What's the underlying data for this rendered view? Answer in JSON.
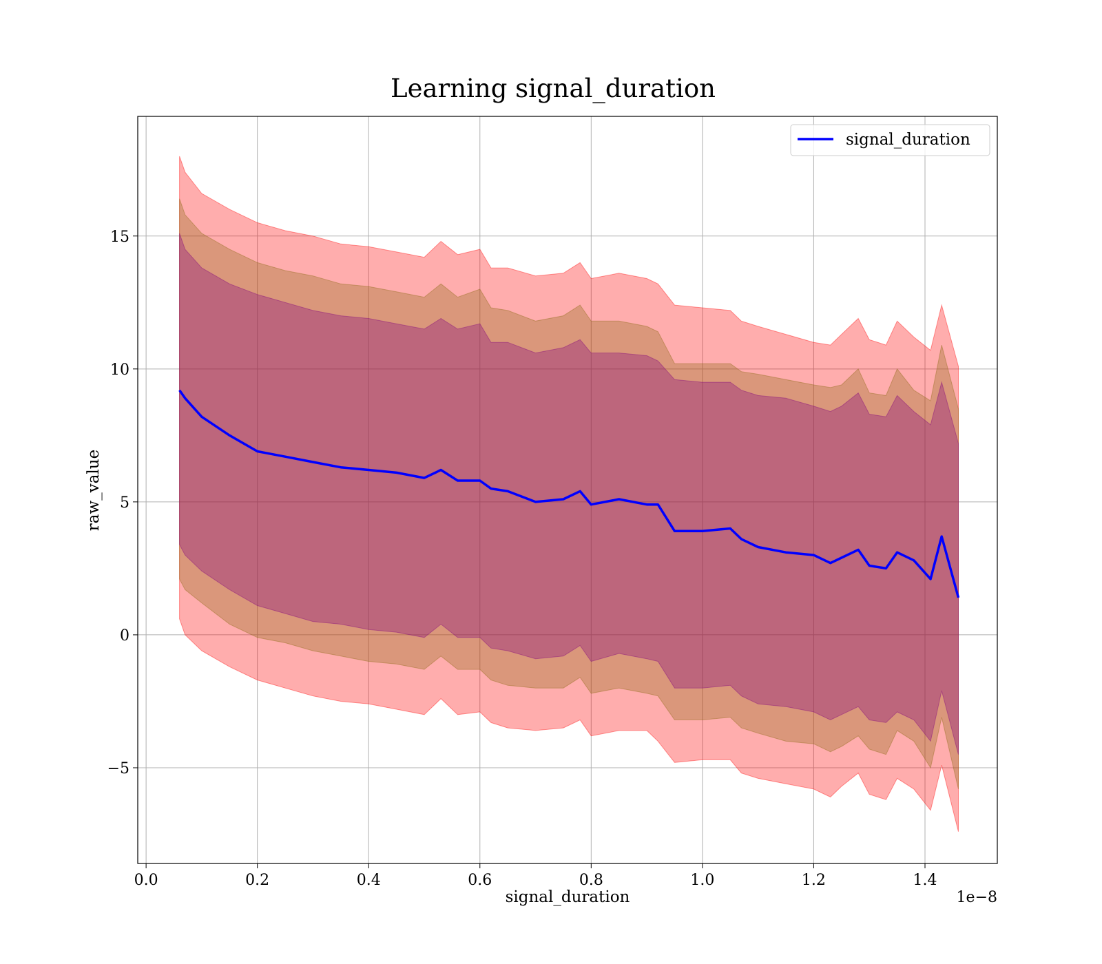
{
  "chart_data": {
    "type": "line",
    "title": "Learning signal_duration",
    "xlabel": "signal_duration",
    "ylabel": "raw_value",
    "x_offset_label": "1e−8",
    "xlim": [
      -0.015,
      1.53
    ],
    "ylim": [
      -8.6,
      19.5
    ],
    "xticks": [
      0.0,
      0.2,
      0.4,
      0.6,
      0.8,
      1.0,
      1.2,
      1.4
    ],
    "xtick_labels": [
      "0.0",
      "0.2",
      "0.4",
      "0.6",
      "0.8",
      "1.0",
      "1.2",
      "1.4"
    ],
    "yticks": [
      -5,
      0,
      5,
      10,
      15
    ],
    "ytick_labels": [
      "−5",
      "0",
      "5",
      "10",
      "15"
    ],
    "grid": true,
    "legend": {
      "placement": "top-right",
      "entries": [
        "signal_duration"
      ]
    },
    "colors": {
      "line": "#0000ff",
      "band_outer": "#ff0000",
      "band_middle": "#8b6914",
      "band_inner": "#800080"
    },
    "x": [
      0.06,
      0.07,
      0.1,
      0.15,
      0.2,
      0.25,
      0.3,
      0.35,
      0.4,
      0.45,
      0.5,
      0.53,
      0.56,
      0.6,
      0.62,
      0.65,
      0.7,
      0.75,
      0.78,
      0.8,
      0.85,
      0.9,
      0.92,
      0.95,
      1.0,
      1.05,
      1.07,
      1.1,
      1.15,
      1.2,
      1.23,
      1.25,
      1.28,
      1.3,
      1.33,
      1.35,
      1.38,
      1.41,
      1.43,
      1.46
    ],
    "series": [
      {
        "name": "signal_duration",
        "mean": [
          9.2,
          8.9,
          8.2,
          7.5,
          6.9,
          6.7,
          6.5,
          6.3,
          6.2,
          6.1,
          5.9,
          6.2,
          5.8,
          5.8,
          5.5,
          5.4,
          5.0,
          5.1,
          5.4,
          4.9,
          5.1,
          4.9,
          4.9,
          3.9,
          3.9,
          4.0,
          3.6,
          3.3,
          3.1,
          3.0,
          2.7,
          2.9,
          3.2,
          2.6,
          2.5,
          3.1,
          2.8,
          2.1,
          3.7,
          1.4
        ],
        "inner_upper": [
          15.1,
          14.5,
          13.8,
          13.2,
          12.8,
          12.5,
          12.2,
          12.0,
          11.9,
          11.7,
          11.5,
          11.9,
          11.5,
          11.7,
          11.0,
          11.0,
          10.6,
          10.8,
          11.1,
          10.6,
          10.6,
          10.5,
          10.3,
          9.6,
          9.5,
          9.5,
          9.2,
          9.0,
          8.9,
          8.6,
          8.4,
          8.6,
          9.1,
          8.3,
          8.2,
          9.0,
          8.4,
          7.9,
          9.5,
          7.2
        ],
        "inner_lower": [
          3.4,
          3.0,
          2.4,
          1.7,
          1.1,
          0.8,
          0.5,
          0.4,
          0.2,
          0.1,
          -0.1,
          0.4,
          -0.1,
          -0.1,
          -0.5,
          -0.6,
          -0.9,
          -0.8,
          -0.4,
          -1.0,
          -0.7,
          -0.9,
          -1.0,
          -2.0,
          -2.0,
          -1.9,
          -2.3,
          -2.6,
          -2.7,
          -2.9,
          -3.2,
          -3.0,
          -2.7,
          -3.2,
          -3.3,
          -2.9,
          -3.2,
          -4.0,
          -2.1,
          -4.5
        ],
        "mid_upper": [
          16.4,
          15.8,
          15.1,
          14.5,
          14.0,
          13.7,
          13.5,
          13.2,
          13.1,
          12.9,
          12.7,
          13.2,
          12.7,
          13.0,
          12.3,
          12.2,
          11.8,
          12.0,
          12.4,
          11.8,
          11.8,
          11.6,
          11.4,
          10.2,
          10.2,
          10.2,
          9.9,
          9.8,
          9.6,
          9.4,
          9.3,
          9.4,
          10.0,
          9.1,
          9.0,
          10.0,
          9.2,
          8.8,
          10.9,
          8.5
        ],
        "mid_lower": [
          2.1,
          1.7,
          1.2,
          0.4,
          -0.1,
          -0.3,
          -0.6,
          -0.8,
          -1.0,
          -1.1,
          -1.3,
          -0.8,
          -1.3,
          -1.3,
          -1.7,
          -1.9,
          -2.0,
          -2.0,
          -1.6,
          -2.2,
          -2.0,
          -2.2,
          -2.3,
          -3.2,
          -3.2,
          -3.1,
          -3.5,
          -3.7,
          -4.0,
          -4.1,
          -4.4,
          -4.2,
          -3.8,
          -4.3,
          -4.5,
          -3.6,
          -4.0,
          -5.0,
          -3.1,
          -5.8
        ],
        "outer_upper": [
          18.0,
          17.4,
          16.6,
          16.0,
          15.5,
          15.2,
          15.0,
          14.7,
          14.6,
          14.4,
          14.2,
          14.8,
          14.3,
          14.5,
          13.8,
          13.8,
          13.5,
          13.6,
          14.0,
          13.4,
          13.6,
          13.4,
          13.2,
          12.4,
          12.3,
          12.2,
          11.8,
          11.6,
          11.3,
          11.0,
          10.9,
          11.3,
          11.9,
          11.1,
          10.9,
          11.8,
          11.2,
          10.7,
          12.4,
          10.1
        ],
        "outer_lower": [
          0.6,
          0.0,
          -0.6,
          -1.2,
          -1.7,
          -2.0,
          -2.3,
          -2.5,
          -2.6,
          -2.8,
          -3.0,
          -2.4,
          -3.0,
          -2.9,
          -3.3,
          -3.5,
          -3.6,
          -3.5,
          -3.2,
          -3.8,
          -3.6,
          -3.6,
          -4.0,
          -4.8,
          -4.7,
          -4.7,
          -5.2,
          -5.4,
          -5.6,
          -5.8,
          -6.1,
          -5.7,
          -5.2,
          -6.0,
          -6.2,
          -5.4,
          -5.8,
          -6.6,
          -4.9,
          -7.4
        ]
      }
    ]
  }
}
